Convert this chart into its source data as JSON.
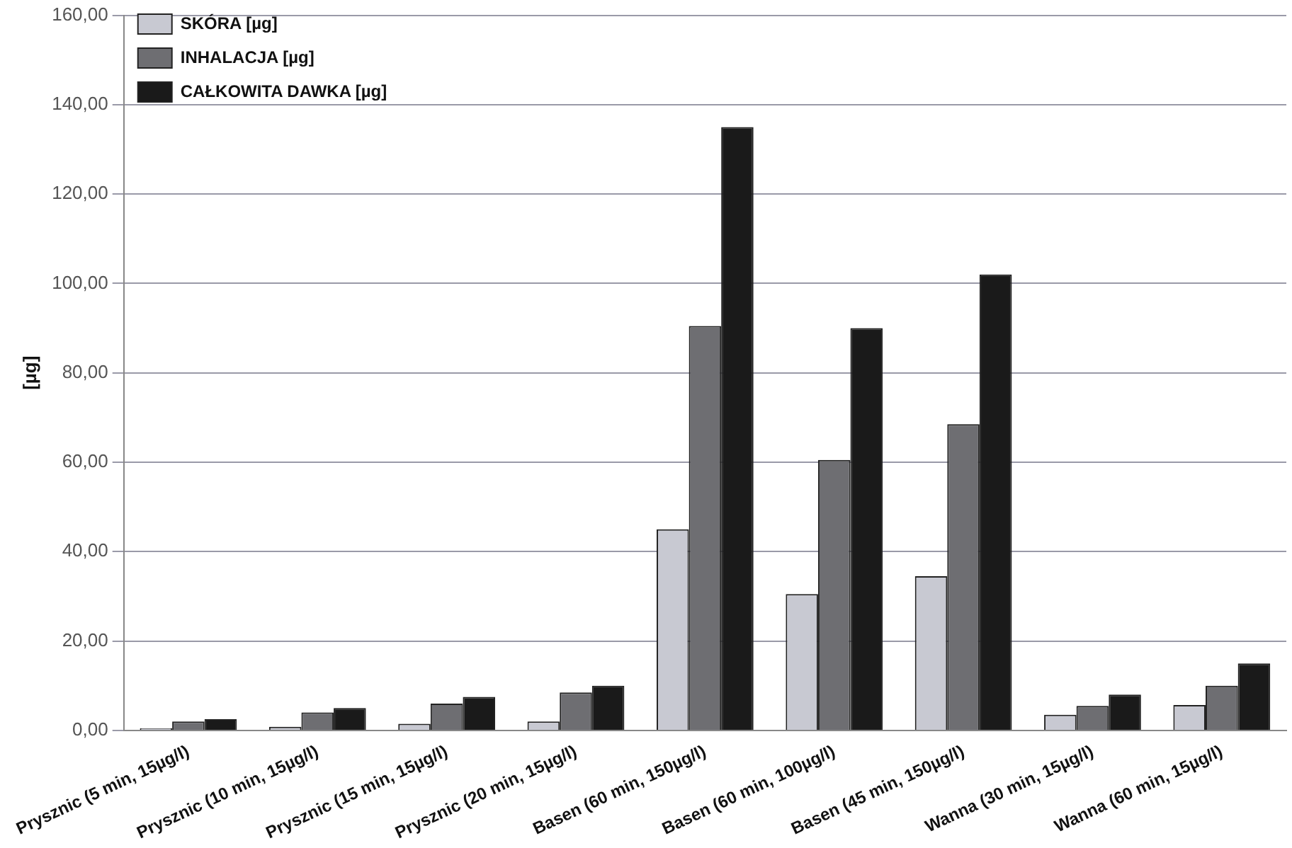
{
  "chart_data": {
    "type": "bar",
    "ylabel": "[µg]",
    "categories": [
      "Prysznic (5 min, 15µg/l)",
      "Prysznic (10 min, 15µg/l)",
      "Prysznic (15 min, 15µg/l)",
      "Prysznic (20 min, 15µg/l)",
      "Basen (60 min, 150µg/l)",
      "Basen (60 min, 100µg/l)",
      "Basen (45 min, 150µg/l)",
      "Wanna (30 min, 15µg/l)",
      "Wanna (60 min, 15µg/l)"
    ],
    "series": [
      {
        "name": "SKÓRA [µg]",
        "color": "#c8c9d2",
        "values": [
          0.5,
          0.8,
          1.5,
          2,
          45,
          30.5,
          34.5,
          3.5,
          5.7
        ]
      },
      {
        "name": "INHALACJA [µg]",
        "color": "#6e6e72",
        "values": [
          2,
          4,
          6,
          8.5,
          90.5,
          60.5,
          68.5,
          5.5,
          10
        ]
      },
      {
        "name": "CAŁKOWITA DAWKA [µg]",
        "color": "#1a1a1a",
        "values": [
          2.5,
          5,
          7.5,
          10,
          135,
          90,
          102,
          8,
          15
        ]
      }
    ],
    "ylim": [
      0,
      160
    ],
    "yticks": [
      {
        "value": 0,
        "label": "0,00"
      },
      {
        "value": 20,
        "label": "20,00"
      },
      {
        "value": 40,
        "label": "40,00"
      },
      {
        "value": 60,
        "label": "60,00"
      },
      {
        "value": 80,
        "label": "80,00"
      },
      {
        "value": 100,
        "label": "100,00"
      },
      {
        "value": 120,
        "label": "120,00"
      },
      {
        "value": 140,
        "label": "140,00"
      },
      {
        "value": 160,
        "label": "160,00"
      }
    ],
    "grid": "y",
    "legend": "top left"
  }
}
